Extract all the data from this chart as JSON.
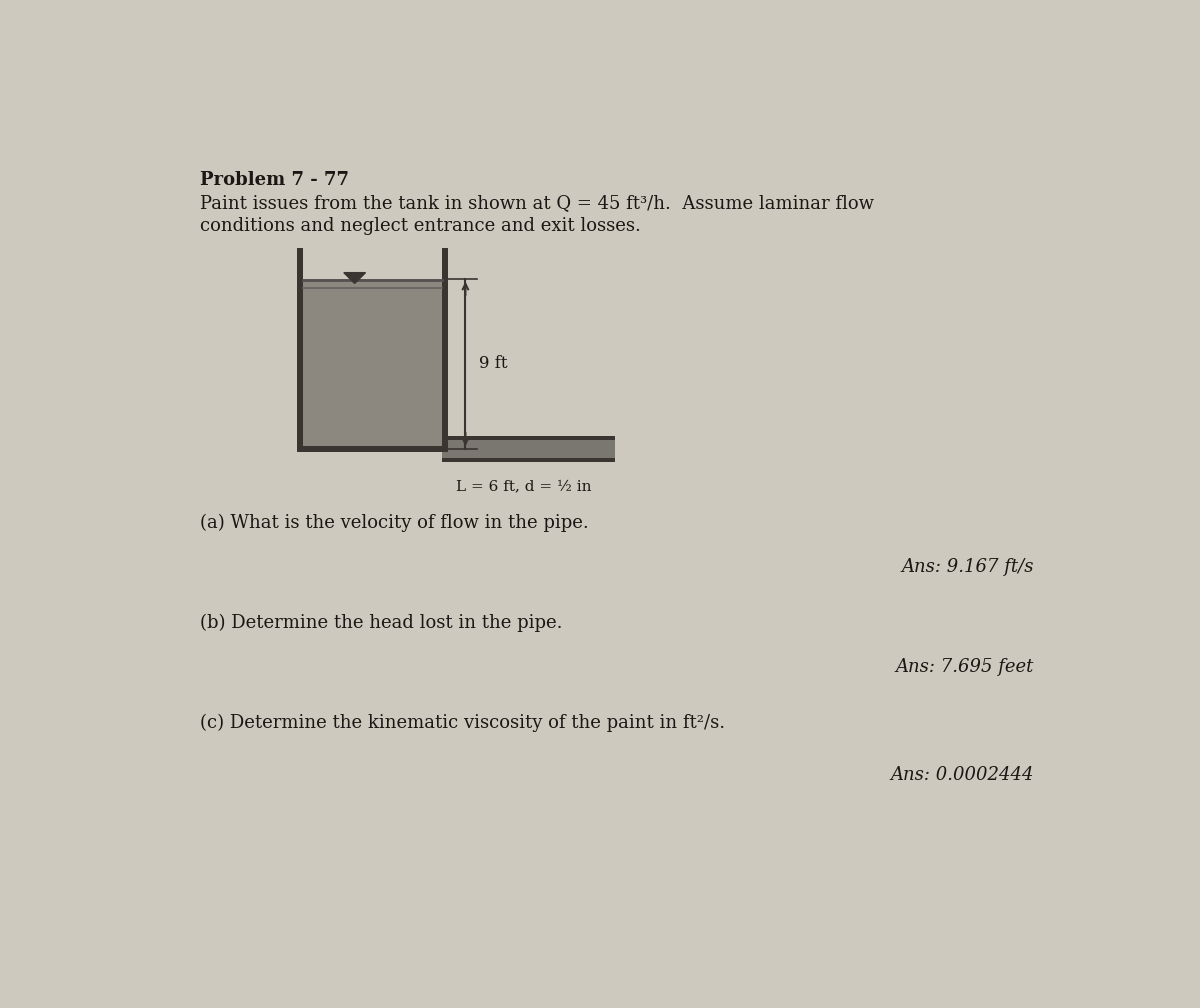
{
  "title": "Problem 7 - 77",
  "title_fontsize": 13,
  "title_fontweight": "bold",
  "problem_line1": "Paint issues from the tank in shown at Q = 45 ft³/h.  Assume laminar flow",
  "problem_line2": "conditions and neglect entrance and exit losses.",
  "problem_fontsize": 13,
  "background_color": "#cdc9be",
  "diagram_height_label": "9 ft",
  "diagram_pipe_label": "L = 6 ft, d = ½ in",
  "questions": [
    {
      "label": "(a)",
      "text": " What is the velocity of flow in the pipe.",
      "answer": "Ans: 9.167 ft/s"
    },
    {
      "label": "(b)",
      "text": " Determine the head lost in the pipe.",
      "answer": "Ans: 7.695 feet"
    },
    {
      "label": "(c)",
      "text": " Determine the kinematic viscosity of the paint in ft²/s.",
      "answer": "Ans: 0.0002444"
    }
  ],
  "tank_fill_color": "#8c8880",
  "tank_wall_color": "#3a3530",
  "pipe_fill_color": "#7a7670",
  "text_color": "#1a1714"
}
